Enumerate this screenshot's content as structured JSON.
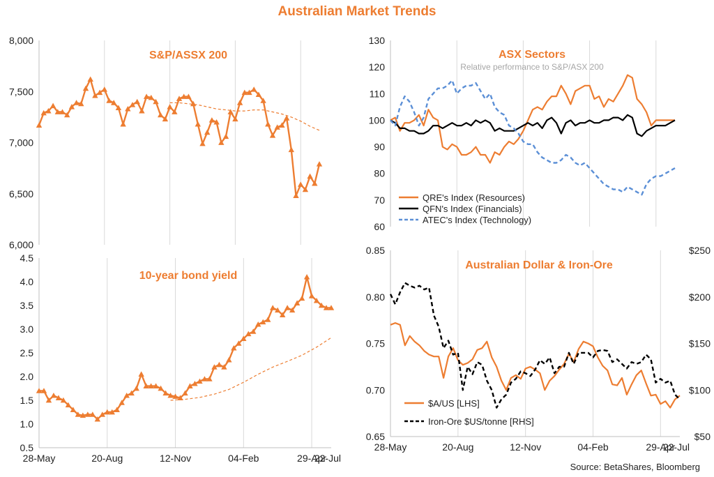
{
  "page": {
    "title": "Australian Market Trends",
    "source": "Source: BetaShares, Bloomberg"
  },
  "colors": {
    "orange": "#ed7d31",
    "black": "#000000",
    "blue": "#5b8fd6",
    "grid": "#d9d9d9",
    "subtitle_gray": "#a6a6a6"
  },
  "chart_data": [
    {
      "id": "asx200",
      "type": "line",
      "title": "S&P/ASSX 200",
      "ylim": [
        6000,
        8000
      ],
      "ytick_labels": [
        "6,000",
        "6,500",
        "7,000",
        "7,500",
        "8,000"
      ],
      "grid": "vertical",
      "series": [
        {
          "style": "solid-triangle",
          "color": "#ed7d31",
          "x": [
            0,
            1,
            2,
            3,
            4,
            5,
            6,
            7,
            8,
            9,
            10,
            11,
            12,
            13,
            14,
            15,
            16,
            17,
            18,
            19,
            20,
            21,
            22,
            23,
            24,
            25,
            26,
            27,
            28,
            29,
            30,
            31,
            32,
            33,
            34,
            35,
            36,
            37,
            38,
            39,
            40,
            41,
            42,
            43,
            44,
            45,
            46,
            47,
            48,
            49,
            50,
            51,
            52,
            53,
            54,
            55,
            56,
            57,
            58,
            59
          ],
          "values": [
            7170,
            7290,
            7310,
            7360,
            7300,
            7300,
            7270,
            7350,
            7390,
            7380,
            7530,
            7620,
            7460,
            7490,
            7520,
            7410,
            7390,
            7340,
            7180,
            7330,
            7370,
            7400,
            7310,
            7450,
            7440,
            7400,
            7270,
            7230,
            7350,
            7300,
            7430,
            7450,
            7450,
            7380,
            7180,
            6990,
            7100,
            7220,
            7200,
            7000,
            7060,
            7300,
            7230,
            7390,
            7490,
            7490,
            7520,
            7470,
            7410,
            7180,
            7070,
            7150,
            7170,
            7240,
            6930,
            6480,
            6590,
            6540,
            6670,
            6600
          ]
        },
        {
          "style": "dashed",
          "color": "#ed7d31",
          "x": [
            28,
            30,
            32,
            34,
            36,
            38,
            40,
            42,
            44,
            46,
            48,
            50,
            52,
            54,
            56,
            58,
            60
          ],
          "values": [
            7390,
            7390,
            7380,
            7370,
            7350,
            7330,
            7320,
            7310,
            7310,
            7320,
            7320,
            7300,
            7280,
            7250,
            7210,
            7160,
            7120
          ]
        }
      ],
      "marker_last": {
        "x": 60,
        "value": 6790
      }
    },
    {
      "id": "bond",
      "type": "line",
      "title": "10-year bond yield",
      "ylim": [
        0.5,
        4.5
      ],
      "ytick_labels": [
        "0.5",
        "1.0",
        "1.5",
        "2.0",
        "2.5",
        "3.0",
        "3.5",
        "4.0",
        "4.5"
      ],
      "xtick_labels": [
        "28-May",
        "20-Aug",
        "12-Nov",
        "04-Feb",
        "29-Apr",
        "22-Jul"
      ],
      "grid": "vertical",
      "series": [
        {
          "style": "solid-triangle",
          "color": "#ed7d31",
          "x": [
            0,
            1,
            2,
            3,
            4,
            5,
            6,
            7,
            8,
            9,
            10,
            11,
            12,
            13,
            14,
            15,
            16,
            17,
            18,
            19,
            20,
            21,
            22,
            23,
            24,
            25,
            26,
            27,
            28,
            29,
            30,
            31,
            32,
            33,
            34,
            35,
            36,
            37,
            38,
            39,
            40,
            41,
            42,
            43,
            44,
            45,
            46,
            47,
            48,
            49,
            50,
            51,
            52,
            53,
            54,
            55,
            56,
            57,
            58,
            59,
            60
          ],
          "values": [
            1.7,
            1.7,
            1.5,
            1.6,
            1.55,
            1.5,
            1.4,
            1.3,
            1.2,
            1.18,
            1.2,
            1.2,
            1.1,
            1.2,
            1.25,
            1.25,
            1.3,
            1.45,
            1.6,
            1.65,
            1.75,
            2.05,
            1.8,
            1.8,
            1.8,
            1.75,
            1.65,
            1.6,
            1.58,
            1.55,
            1.65,
            1.8,
            1.85,
            1.9,
            1.95,
            1.95,
            2.2,
            2.25,
            2.2,
            2.35,
            2.6,
            2.7,
            2.8,
            2.9,
            2.95,
            3.1,
            3.15,
            3.2,
            3.45,
            3.4,
            3.3,
            3.45,
            3.4,
            3.55,
            3.65,
            4.1,
            3.7,
            3.6,
            3.5,
            3.45,
            3.45
          ]
        },
        {
          "style": "dashed",
          "color": "#ed7d31",
          "x": [
            27,
            30,
            33,
            36,
            39,
            42,
            45,
            48,
            51,
            54,
            57,
            60
          ],
          "values": [
            1.5,
            1.52,
            1.56,
            1.63,
            1.73,
            1.88,
            2.05,
            2.2,
            2.32,
            2.45,
            2.62,
            2.82
          ]
        }
      ]
    },
    {
      "id": "sectors",
      "type": "line",
      "title": "ASX Sectors",
      "subtitle": "Relative performance to S&P/ASX 200",
      "ylim": [
        60,
        130
      ],
      "ytick_labels": [
        "60",
        "70",
        "80",
        "90",
        "100",
        "110",
        "120",
        "130"
      ],
      "grid": "vertical",
      "legend_position": "bottom-left",
      "series": [
        {
          "name": "QRE's Index (Resources)",
          "style": "solid",
          "color": "#ed7d31",
          "x": [
            0,
            1,
            2,
            3,
            4,
            5,
            6,
            7,
            8,
            9,
            10,
            11,
            12,
            13,
            14,
            15,
            16,
            17,
            18,
            19,
            20,
            21,
            22,
            23,
            24,
            25,
            26,
            27,
            28,
            29,
            30,
            31,
            32,
            33,
            34,
            35,
            36,
            37,
            38,
            39,
            40,
            41,
            42,
            43,
            44,
            45,
            46,
            47,
            48,
            49,
            50,
            51,
            52,
            53,
            54,
            55,
            56,
            57,
            58,
            59,
            60
          ],
          "values": [
            100,
            101,
            96,
            99,
            99,
            100,
            102,
            98,
            104,
            101,
            100,
            90,
            89,
            91,
            90,
            87,
            87,
            88,
            90,
            87,
            87,
            84,
            88,
            87,
            90,
            92,
            91,
            93,
            96,
            100,
            104,
            105,
            104,
            107,
            109,
            109,
            113,
            110,
            106,
            111,
            112,
            113,
            113,
            108,
            109,
            105,
            108,
            107,
            110,
            113,
            117,
            116,
            108,
            106,
            103,
            98,
            100,
            100,
            100,
            100,
            100
          ]
        },
        {
          "name": "QFN's Index (Financials)",
          "style": "solid",
          "color": "#000000",
          "x": [
            0,
            1,
            2,
            3,
            4,
            5,
            6,
            7,
            8,
            9,
            10,
            11,
            12,
            13,
            14,
            15,
            16,
            17,
            18,
            19,
            20,
            21,
            22,
            23,
            24,
            25,
            26,
            27,
            28,
            29,
            30,
            31,
            32,
            33,
            34,
            35,
            36,
            37,
            38,
            39,
            40,
            41,
            42,
            43,
            44,
            45,
            46,
            47,
            48,
            49,
            50,
            51,
            52,
            53,
            54,
            55,
            56,
            57,
            58,
            59,
            60
          ],
          "values": [
            100,
            99,
            97,
            97,
            96,
            96,
            95,
            95,
            96,
            98,
            98,
            97,
            98,
            99,
            98,
            98,
            99,
            98,
            100,
            99,
            100,
            99,
            96,
            97,
            96,
            96,
            96,
            97,
            98,
            99,
            98,
            99,
            97,
            100,
            101,
            99,
            95,
            99,
            100,
            98,
            99,
            99,
            100,
            99,
            99,
            100,
            100,
            101,
            101,
            100,
            102,
            101,
            95,
            94,
            96,
            97,
            98,
            98,
            98,
            99,
            100
          ]
        },
        {
          "name": "ATEC's Index (Technology)",
          "style": "dashed",
          "color": "#5b8fd6",
          "x": [
            0,
            1,
            2,
            3,
            4,
            5,
            6,
            7,
            8,
            9,
            10,
            11,
            12,
            13,
            14,
            15,
            16,
            17,
            18,
            19,
            20,
            21,
            22,
            23,
            24,
            25,
            26,
            27,
            28,
            29,
            30,
            31,
            32,
            33,
            34,
            35,
            36,
            37,
            38,
            39,
            40,
            41,
            42,
            43,
            44,
            45,
            46,
            47,
            48,
            49,
            50,
            51,
            52,
            53,
            54,
            55,
            56,
            57,
            58,
            59,
            60
          ],
          "values": [
            100,
            98,
            105,
            109,
            107,
            103,
            98,
            101,
            108,
            110,
            112,
            112,
            113,
            115,
            110,
            112,
            113,
            113,
            114,
            111,
            108,
            110,
            105,
            103,
            102,
            98,
            97,
            95,
            92,
            91,
            91,
            88,
            86,
            85,
            84,
            84,
            85,
            87,
            86,
            84,
            83,
            84,
            82,
            80,
            78,
            76,
            75,
            74,
            74,
            73,
            75,
            74,
            73,
            72,
            76,
            78,
            79,
            79,
            80,
            81,
            82
          ]
        }
      ]
    },
    {
      "id": "aud-iron",
      "type": "line",
      "title": "Australian Dollar & Iron-Ore",
      "ylim": [
        0.65,
        0.85
      ],
      "ytick_labels": [
        "0.65",
        "0.70",
        "0.75",
        "0.80",
        "0.85"
      ],
      "y2lim": [
        50,
        250
      ],
      "y2tick_labels": [
        "$50",
        "$100",
        "$150",
        "$200",
        "$250"
      ],
      "xtick_labels": [
        "28-May",
        "20-Aug",
        "12-Nov",
        "04-Feb",
        "29-Apr",
        "22-Jul"
      ],
      "grid": "vertical",
      "legend_position": "bottom-left",
      "series": [
        {
          "name": "$A/US [LHS]",
          "style": "solid",
          "axis": "left",
          "color": "#ed7d31",
          "x": [
            0,
            1,
            2,
            3,
            4,
            5,
            6,
            7,
            8,
            9,
            10,
            11,
            12,
            13,
            14,
            15,
            16,
            17,
            18,
            19,
            20,
            21,
            22,
            23,
            24,
            25,
            26,
            27,
            28,
            29,
            30,
            31,
            32,
            33,
            34,
            35,
            36,
            37,
            38,
            39,
            40,
            41,
            42,
            43,
            44,
            45,
            46,
            47,
            48,
            49,
            50,
            51,
            52,
            53,
            54,
            55,
            56,
            57,
            58,
            59,
            60
          ],
          "values": [
            0.77,
            0.772,
            0.77,
            0.748,
            0.758,
            0.752,
            0.748,
            0.742,
            0.738,
            0.736,
            0.736,
            0.713,
            0.736,
            0.745,
            0.732,
            0.727,
            0.729,
            0.733,
            0.743,
            0.745,
            0.752,
            0.735,
            0.725,
            0.71,
            0.7,
            0.713,
            0.716,
            0.712,
            0.723,
            0.725,
            0.722,
            0.718,
            0.7,
            0.71,
            0.715,
            0.722,
            0.728,
            0.739,
            0.73,
            0.744,
            0.752,
            0.75,
            0.747,
            0.735,
            0.726,
            0.721,
            0.706,
            0.705,
            0.713,
            0.695,
            0.706,
            0.716,
            0.721,
            0.707,
            0.694,
            0.695,
            0.685,
            0.688,
            0.681,
            0.69,
            0.694
          ]
        },
        {
          "name": "Iron-Ore $US/tonne [RHS]",
          "style": "dashed",
          "axis": "right",
          "color": "#000000",
          "x": [
            0,
            1,
            2,
            3,
            4,
            5,
            6,
            7,
            8,
            9,
            10,
            11,
            12,
            13,
            14,
            15,
            16,
            17,
            18,
            19,
            20,
            21,
            22,
            23,
            24,
            25,
            26,
            27,
            28,
            29,
            30,
            31,
            32,
            33,
            34,
            35,
            36,
            37,
            38,
            39,
            40,
            41,
            42,
            43,
            44,
            45,
            46,
            47,
            48,
            49,
            50,
            51,
            52,
            53,
            54,
            55,
            56,
            57,
            58,
            59,
            60
          ],
          "values": [
            203,
            192,
            205,
            215,
            212,
            210,
            212,
            208,
            210,
            180,
            168,
            145,
            153,
            138,
            140,
            100,
            125,
            117,
            130,
            127,
            110,
            100,
            81,
            90,
            95,
            108,
            112,
            120,
            118,
            115,
            122,
            132,
            128,
            135,
            118,
            125,
            125,
            140,
            128,
            140,
            140,
            140,
            135,
            142,
            143,
            142,
            130,
            133,
            128,
            123,
            130,
            128,
            130,
            138,
            133,
            108,
            112,
            108,
            110,
            95,
            90
          ]
        }
      ]
    }
  ]
}
